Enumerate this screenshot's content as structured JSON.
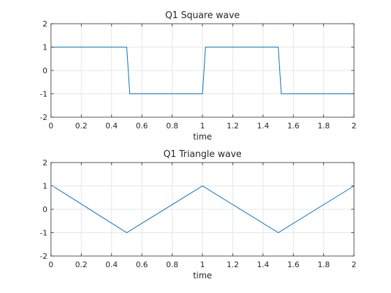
{
  "chart_data": [
    {
      "type": "line",
      "title": "Q1 Square wave",
      "xlabel": "time",
      "ylabel": "",
      "xlim": [
        0,
        2
      ],
      "ylim": [
        -2,
        2
      ],
      "xticks": [
        "0",
        "0.2",
        "0.4",
        "0.6",
        "0.8",
        "1",
        "1.2",
        "1.4",
        "1.6",
        "1.8",
        "2"
      ],
      "yticks": [
        "-2",
        "-1",
        "0",
        "1",
        "2"
      ],
      "grid": true,
      "series": [
        {
          "x": [
            0,
            0.5,
            0.52,
            1.0,
            1.02,
            1.5,
            1.52,
            2.0
          ],
          "y": [
            1,
            1,
            -1,
            -1,
            1,
            1,
            -1,
            -1
          ]
        }
      ]
    },
    {
      "type": "line",
      "title": "Q1 Triangle wave",
      "xlabel": "time",
      "ylabel": "",
      "xlim": [
        0,
        2
      ],
      "ylim": [
        -2,
        2
      ],
      "xticks": [
        "0",
        "0.2",
        "0.4",
        "0.6",
        "0.8",
        "1",
        "1.2",
        "1.4",
        "1.6",
        "1.8",
        "2"
      ],
      "yticks": [
        "-2",
        "-1",
        "0",
        "1",
        "2"
      ],
      "grid": true,
      "series": [
        {
          "x": [
            0.02,
            0.5,
            1.0,
            1.5,
            2.0
          ],
          "y": [
            0.96,
            -1,
            1,
            -1,
            1
          ]
        }
      ]
    }
  ],
  "colors": {
    "line": "#0072BD",
    "axis": "#262626",
    "grid": "#e5e5e5"
  }
}
